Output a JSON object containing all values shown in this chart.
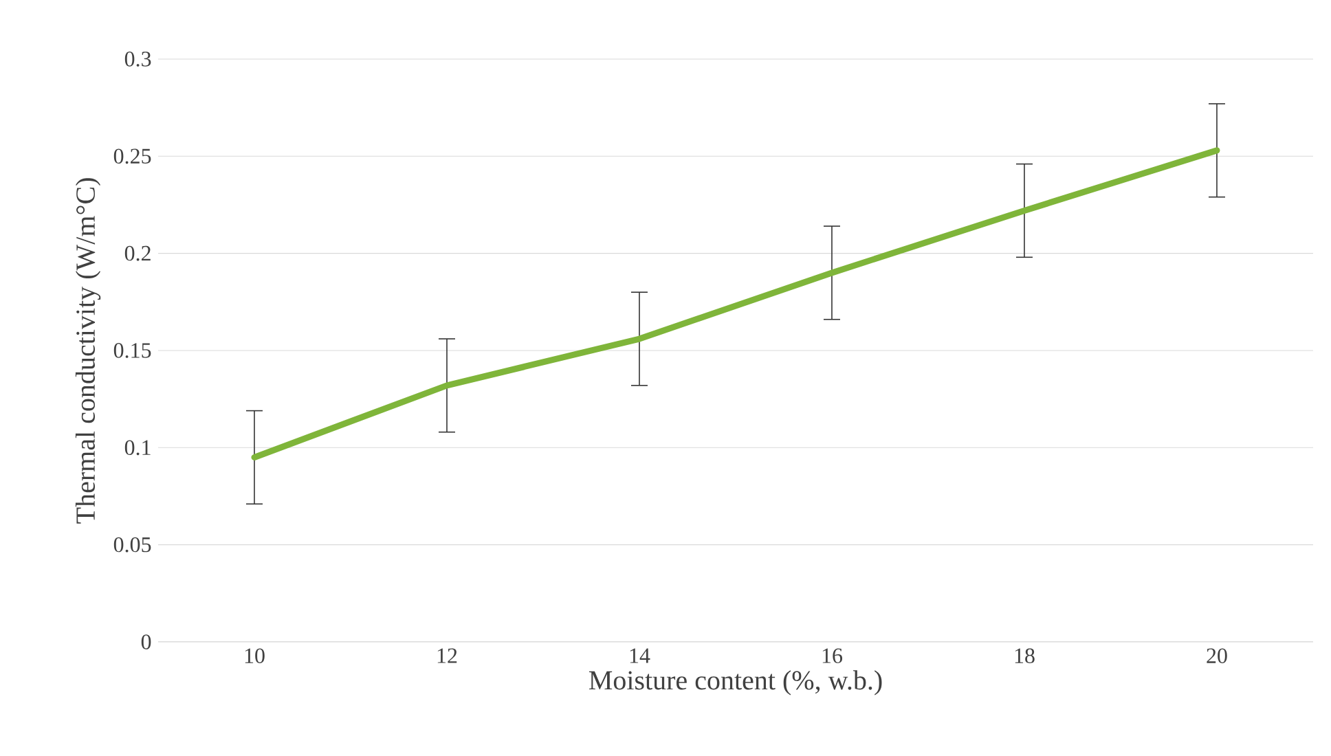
{
  "chart_data": {
    "type": "line",
    "xlabel": "Moisture content (%, w.b.)",
    "ylabel": "Thermal conductivity (W/m°C)",
    "categories": [
      "10",
      "12",
      "14",
      "16",
      "18",
      "20"
    ],
    "series": [
      {
        "color": "#7fb53a",
        "values": [
          0.095,
          0.132,
          0.156,
          0.19,
          0.222,
          0.253
        ],
        "errors": [
          0.024,
          0.024,
          0.024,
          0.024,
          0.024,
          0.024
        ]
      }
    ],
    "ylim": [
      0,
      0.3
    ],
    "yticks": [
      0,
      0.05,
      0.1,
      0.15,
      0.2,
      0.25,
      0.3
    ],
    "grid": "y",
    "legend": false,
    "marker": "none",
    "line_style": "solid"
  }
}
